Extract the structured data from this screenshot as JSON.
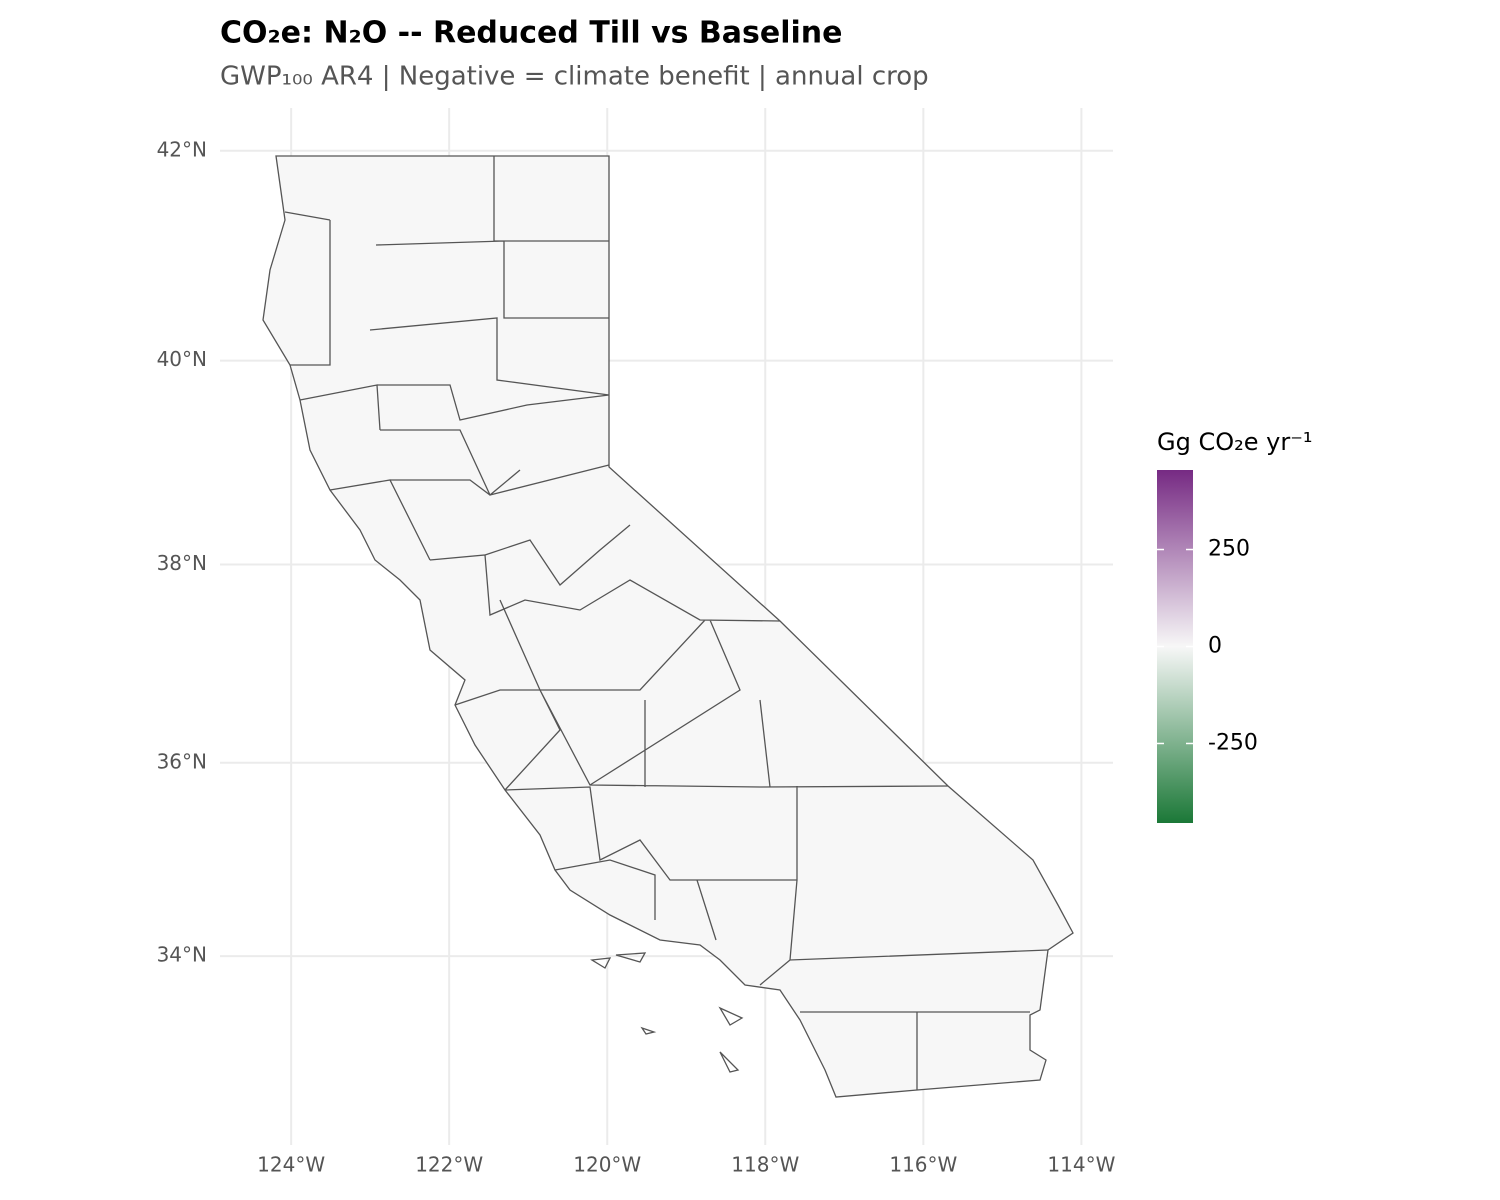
{
  "chart_data": {
    "type": "map",
    "title": "CO₂e: N₂O -- Reduced Till vs Baseline",
    "subtitle": "GWP₁₀₀ AR4 | Negative = climate benefit | annual crop",
    "projection": "mercator",
    "xlim": [
      -124.9,
      -113.6
    ],
    "ylim": [
      32.0,
      42.4
    ],
    "xticks": [
      {
        "value": -124,
        "label": "124°W"
      },
      {
        "value": -122,
        "label": "122°W"
      },
      {
        "value": -120,
        "label": "120°W"
      },
      {
        "value": -118,
        "label": "118°W"
      },
      {
        "value": -116,
        "label": "116°W"
      },
      {
        "value": -114,
        "label": "114°W"
      }
    ],
    "yticks": [
      {
        "value": 34,
        "label": "34°N"
      },
      {
        "value": 36,
        "label": "36°N"
      },
      {
        "value": 38,
        "label": "38°N"
      },
      {
        "value": 40,
        "label": "40°N"
      },
      {
        "value": 42,
        "label": "42°N"
      }
    ],
    "grid": true,
    "fill": "#f7f7f7",
    "legend": {
      "title": "Gg CO₂e yr⁻¹",
      "lim": [
        -455,
        455
      ],
      "ticks": [
        -250,
        0,
        250
      ],
      "colors": [
        "#1b7837",
        "#f7f7f7",
        "#762a83"
      ]
    }
  }
}
